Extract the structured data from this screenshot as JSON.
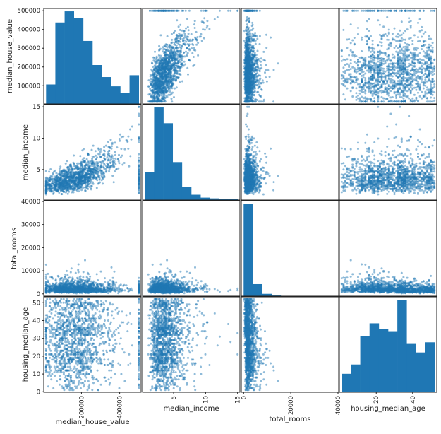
{
  "chart_data": {
    "type": "scatter",
    "kind": "scatter_matrix",
    "color": "#1f77b4",
    "point_alpha": 0.5,
    "grid": false,
    "variables": [
      {
        "name": "median_house_value",
        "range": [
          15000,
          500001
        ],
        "ticks": [
          100000,
          200000,
          300000,
          400000,
          500000
        ],
        "x_ticks": [
          200000,
          400000
        ],
        "hist_relative_heights": [
          0.21,
          0.88,
          1.0,
          0.93,
          0.68,
          0.42,
          0.29,
          0.19,
          0.12,
          0.31
        ]
      },
      {
        "name": "median_income",
        "range": [
          0.5,
          15.0
        ],
        "ticks": [
          5,
          10,
          15
        ],
        "x_ticks": [
          5,
          10,
          15
        ],
        "hist_relative_heights": [
          0.3,
          1.0,
          0.83,
          0.41,
          0.14,
          0.057,
          0.026,
          0.018,
          0.01,
          0.008
        ]
      },
      {
        "name": "total_rooms",
        "range": [
          2,
          39320
        ],
        "ticks": [
          0,
          10000,
          20000,
          30000,
          40000
        ],
        "x_ticks": [
          0,
          20000,
          40000
        ],
        "hist_relative_heights": [
          1.0,
          0.13,
          0.025,
          0.007,
          0.002,
          0.001,
          0.0005,
          0.0003,
          0.0002,
          0.0002
        ]
      },
      {
        "name": "housing_median_age",
        "range": [
          1,
          52
        ],
        "ticks": [
          0,
          10,
          20,
          30,
          40,
          50
        ],
        "x_ticks": [
          20,
          40
        ],
        "hist_relative_heights": [
          0.2,
          0.3,
          0.61,
          0.745,
          0.686,
          0.66,
          1.0,
          0.53,
          0.43,
          0.54
        ]
      }
    ],
    "range_padding": 0.05,
    "diagonal": "hist",
    "hist_bins": 10
  }
}
